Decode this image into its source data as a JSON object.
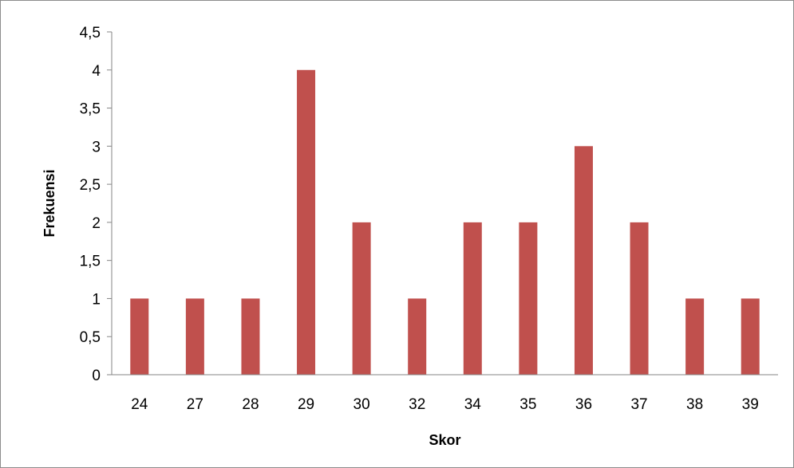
{
  "chart_data": {
    "type": "bar",
    "title": "",
    "xlabel": "Skor",
    "ylabel": "Frekuensi",
    "categories": [
      "24",
      "27",
      "28",
      "29",
      "30",
      "32",
      "34",
      "35",
      "36",
      "37",
      "38",
      "39"
    ],
    "values": [
      1,
      1,
      1,
      4,
      2,
      1,
      2,
      2,
      3,
      2,
      1,
      1
    ],
    "ylim": [
      0,
      4.5
    ],
    "y_ticks": [
      "0",
      "0,5",
      "1",
      "1,5",
      "2",
      "2,5",
      "3",
      "3,5",
      "4",
      "4,5"
    ],
    "bar_color": "#c0504d",
    "grid": false,
    "legend": "none"
  }
}
